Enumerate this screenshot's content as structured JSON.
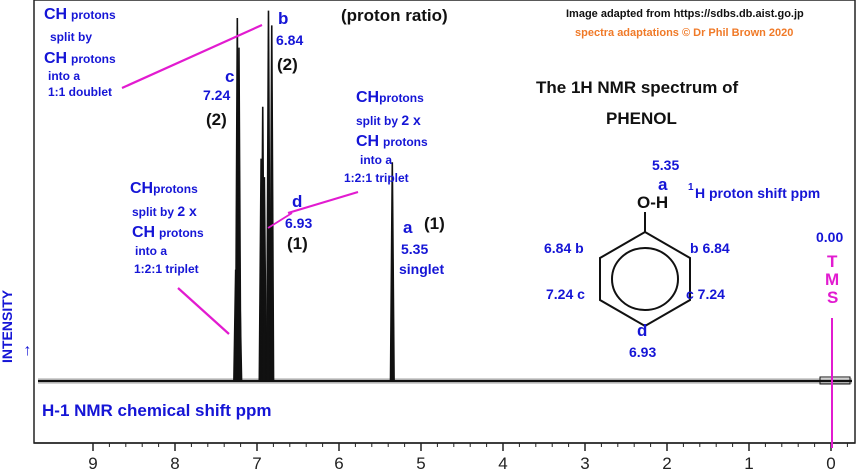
{
  "header": {
    "ratio_title": "(proton ratio)",
    "credit_source": "Image adapted from https://sdbs.db.aist.go.jp",
    "credit_author": "spectra adaptations © Dr Phil Brown 2020",
    "spectrum_title_line1": "The 1H NMR spectrum of",
    "spectrum_title_line2": "PHENOL"
  },
  "axis": {
    "x_title": "H-1 NMR chemical shift  ppm",
    "y_title": "INTENSITY",
    "y_arrow": "→",
    "tick_labels": [
      "9",
      "8",
      "7",
      "6",
      "5",
      "4",
      "3",
      "2",
      "1",
      "0"
    ]
  },
  "peaks": {
    "c": {
      "letter": "c",
      "shift": "7.24",
      "ratio": "(2)"
    },
    "b": {
      "letter": "b",
      "shift": "6.84",
      "ratio": "(2)"
    },
    "d": {
      "letter": "d",
      "shift": "6.93",
      "ratio": "(1)"
    },
    "a": {
      "letter": "a",
      "shift": "5.35",
      "ratio": "(1)",
      "mult": "singlet"
    }
  },
  "notes": {
    "doublet": {
      "ch": "CH",
      "protons": "protons",
      "l2": "split by",
      "ch2": "CH",
      "protons2": "protons",
      "l4": "into a",
      "l5": "1:1 doublet"
    },
    "triplet_right": {
      "ch": "CH",
      "protons": "protons",
      "l2a": "split by",
      "l2b": "2 x",
      "ch2": "CH",
      "protons2": "protons",
      "l4": "into a",
      "l5": "1:2:1 triplet"
    },
    "triplet_left": {
      "ch": "CH",
      "protons": "protons",
      "l2a": "split by",
      "l2b": "2 x",
      "ch2": "CH",
      "protons2": "protons",
      "l4": "into a",
      "l5": "1:2:1 triplet"
    }
  },
  "molecule": {
    "a_shift": "5.35",
    "a_letter": "a",
    "oh": "O-H",
    "legend_sup": "1",
    "legend_text": "H  proton shift  ppm",
    "left_b": "6.84  b",
    "right_b": "b  6.84",
    "left_c": "7.24  c",
    "right_c": "c  7.24",
    "d_letter": "d",
    "d_shift": "6.93"
  },
  "tms": {
    "value": "0.00",
    "letters": [
      "T",
      "M",
      "S"
    ]
  },
  "colors": {
    "label_blue": "#1515d6",
    "pointer_pink": "#e21bd0",
    "credit_orange": "#f07a28",
    "ink": "#111111"
  },
  "chart_data": {
    "type": "line",
    "x_unit": "ppm",
    "xlim": [
      9.8,
      -0.3
    ],
    "x_reversed": true,
    "x_ticks": [
      9,
      8,
      7,
      6,
      5,
      4,
      3,
      2,
      1,
      0
    ],
    "grid": false,
    "signals": [
      {
        "label": "c",
        "shift": 7.24,
        "multiplicity": "1:2:1 triplet",
        "proton_ratio": 2,
        "lines": [
          {
            "x": 7.26,
            "height": 0.3
          },
          {
            "x": 7.24,
            "height": 0.98
          },
          {
            "x": 7.22,
            "height": 0.9
          },
          {
            "x": 7.21,
            "height": 0.25
          }
        ]
      },
      {
        "label": "d",
        "shift": 6.93,
        "multiplicity": "1:2:1 triplet",
        "proton_ratio": 1,
        "lines": [
          {
            "x": 6.95,
            "height": 0.6
          },
          {
            "x": 6.93,
            "height": 0.74
          },
          {
            "x": 6.91,
            "height": 0.55
          }
        ]
      },
      {
        "label": "b",
        "shift": 6.84,
        "multiplicity": "1:1 doublet",
        "proton_ratio": 2,
        "lines": [
          {
            "x": 6.86,
            "height": 1.0
          },
          {
            "x": 6.82,
            "height": 0.96
          }
        ]
      },
      {
        "label": "a",
        "shift": 5.35,
        "multiplicity": "singlet",
        "proton_ratio": 1,
        "lines": [
          {
            "x": 5.35,
            "height": 0.59
          }
        ]
      },
      {
        "label": "TMS",
        "shift": 0.0,
        "multiplicity": "reference",
        "proton_ratio": null,
        "lines": []
      }
    ]
  }
}
